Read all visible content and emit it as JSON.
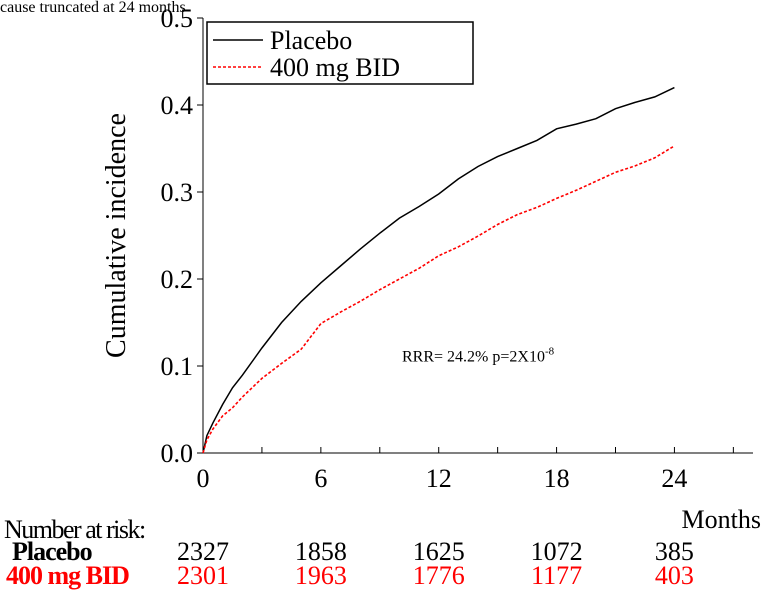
{
  "header_text": "cause truncated at 24 months",
  "chart_data": {
    "type": "line",
    "ylabel": "Cumulative incidence",
    "xlabel": "Months",
    "xlim": [
      0,
      28
    ],
    "ylim": [
      0,
      0.5
    ],
    "x_ticks": [
      0,
      6,
      12,
      18,
      24
    ],
    "y_ticks": [
      0.0,
      0.1,
      0.2,
      0.3,
      0.4,
      0.5
    ],
    "y_tick_labels": [
      "0.0",
      "0.1",
      "0.2",
      "0.3",
      "0.4",
      "0.5"
    ],
    "legend_position": "top-left",
    "series": [
      {
        "name": "Placebo",
        "color": "#000000",
        "dash": "solid",
        "x": [
          0,
          0.2,
          0.5,
          1,
          1.5,
          2,
          3,
          4,
          5,
          6,
          7,
          8,
          9,
          10,
          11,
          12,
          13,
          14,
          15,
          16,
          17,
          18,
          19,
          20,
          21,
          22,
          23,
          24
        ],
        "y": [
          0,
          0.02,
          0.035,
          0.055,
          0.075,
          0.09,
          0.12,
          0.15,
          0.175,
          0.195,
          0.215,
          0.235,
          0.252,
          0.27,
          0.284,
          0.297,
          0.315,
          0.33,
          0.34,
          0.35,
          0.36,
          0.372,
          0.378,
          0.385,
          0.395,
          0.403,
          0.41,
          0.42
        ]
      },
      {
        "name": "400 mg BID",
        "color": "#ff0000",
        "dash": "dashed",
        "x": [
          0,
          0.2,
          0.5,
          1,
          1.5,
          2,
          3,
          4,
          5,
          6,
          7,
          8,
          9,
          10,
          11,
          12,
          13,
          14,
          15,
          16,
          17,
          18,
          19,
          20,
          21,
          22,
          23,
          24
        ],
        "y": [
          0,
          0.015,
          0.028,
          0.042,
          0.052,
          0.065,
          0.085,
          0.103,
          0.12,
          0.148,
          0.162,
          0.175,
          0.187,
          0.2,
          0.213,
          0.226,
          0.237,
          0.25,
          0.262,
          0.274,
          0.283,
          0.292,
          0.302,
          0.313,
          0.322,
          0.33,
          0.34,
          0.353
        ]
      }
    ],
    "annotation": {
      "text": "RRR= 24.2% p=2X10",
      "superscript": "-8",
      "x": 14,
      "y": 0.105
    }
  },
  "risk_table": {
    "title": "Number at risk:",
    "rows": [
      {
        "label": "Placebo",
        "color": "#000000",
        "values": [
          "2327",
          "1858",
          "1625",
          "1072",
          "385"
        ]
      },
      {
        "label": "400 mg BID",
        "color": "#ff0000",
        "values": [
          "2301",
          "1963",
          "1776",
          "1177",
          "403"
        ]
      }
    ]
  }
}
